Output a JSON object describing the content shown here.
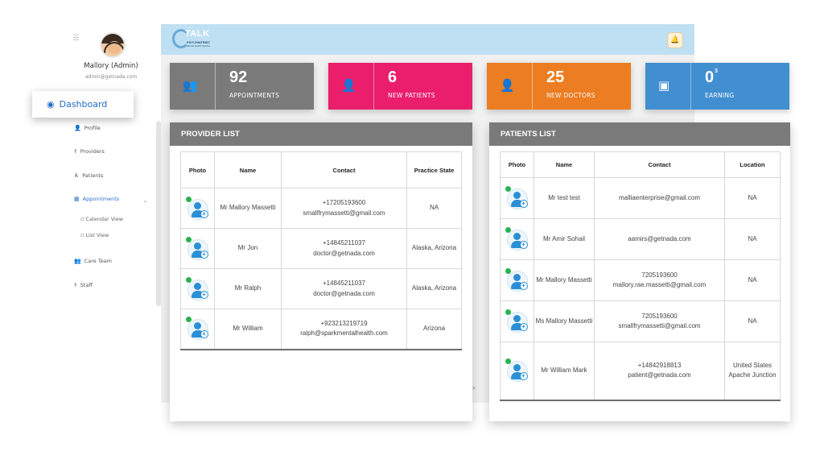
{
  "user": {
    "name": "Mallory (Admin)",
    "email": "admin@getnada.com"
  },
  "logo": {
    "brand": "TALK",
    "sub": "PSYCHIATRIST",
    "tagline": "Mental Health Service"
  },
  "nav": {
    "dashboard": "Dashboard",
    "items": [
      "Profile",
      "Providers",
      "Patients",
      "Appointments",
      "Care Team",
      "Staff"
    ],
    "sub_items": [
      "Calendar View",
      "List View"
    ]
  },
  "stats": [
    {
      "value": "92",
      "label": "APPOINTMENTS",
      "color": "#7a7a7a",
      "icon": "users-icon"
    },
    {
      "value": "6",
      "label": "NEW PATIENTS",
      "color": "#ea1e6b",
      "icon": "user-icon"
    },
    {
      "value": "25",
      "label": "NEW DOCTORS",
      "color": "#ec7d22",
      "icon": "user-plus-icon"
    },
    {
      "value": "0",
      "sup": "$",
      "label": "EARNING",
      "color": "#418ed1",
      "icon": "money-icon"
    }
  ],
  "provider_list": {
    "title": "PROVIDER LIST",
    "columns": [
      "Photo",
      "Name",
      "Contact",
      "Practice State"
    ],
    "rows": [
      {
        "name": "Mr Mallory Massetti",
        "phone": "+17205193600",
        "email": "smallfrymassetti@gmail.com",
        "state": "NA"
      },
      {
        "name": "Mr Jon",
        "phone": "+14845211037",
        "email": "doctor@getnada.com",
        "state": "Alaska, Arizona"
      },
      {
        "name": "Mr Ralph",
        "phone": "+14845211037",
        "email": "doctor@getnada.com",
        "state": "Alaska, Arizona"
      },
      {
        "name": "Mr William",
        "phone": "+923213219719",
        "email": "ralph@sparkmentalhealth.com",
        "state": "Arizona"
      }
    ]
  },
  "patients_list": {
    "title": "PATIENTS LIST",
    "columns": [
      "Photo",
      "Name",
      "Contact",
      "Location"
    ],
    "rows": [
      {
        "name": "Mr test test",
        "phone": "",
        "email": "malliaenterprise@gmail.com",
        "location": "NA"
      },
      {
        "name": "Mr Amir Sohail",
        "phone": "",
        "email": "aamirs@getnada.com",
        "location": "NA"
      },
      {
        "name": "Mr Mallory Massetti",
        "phone": "7205193600",
        "email": "mallory.rae.massetti@gmail.com",
        "location": "NA"
      },
      {
        "name": "Ms Mallory Massetti",
        "phone": "7205193600",
        "email": "smallfrymassetti@gmail.com",
        "location": "NA"
      },
      {
        "name": "Mr William Mark",
        "phone": "+14842918813",
        "email": "patient@getnada.com",
        "location": "United States Apache Junction"
      }
    ]
  }
}
